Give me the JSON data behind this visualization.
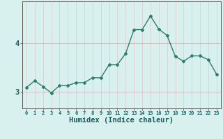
{
  "x": [
    0,
    1,
    2,
    3,
    4,
    5,
    6,
    7,
    8,
    9,
    10,
    11,
    12,
    13,
    14,
    15,
    16,
    17,
    18,
    19,
    20,
    21,
    22,
    23
  ],
  "y": [
    3.08,
    3.22,
    3.1,
    2.97,
    3.12,
    3.12,
    3.18,
    3.18,
    3.28,
    3.28,
    3.55,
    3.55,
    3.78,
    4.27,
    4.27,
    4.55,
    4.28,
    4.15,
    3.72,
    3.62,
    3.73,
    3.73,
    3.65,
    3.35
  ],
  "line_color": "#2e7d6e",
  "marker": "D",
  "marker_size": 2.0,
  "line_width": 1.0,
  "xlabel": "Humidex (Indice chaleur)",
  "xlabel_fontsize": 7.5,
  "yticks": [
    3,
    4
  ],
  "ylim": [
    2.65,
    4.85
  ],
  "xlim": [
    -0.5,
    23.5
  ],
  "xticks": [
    0,
    1,
    2,
    3,
    4,
    5,
    6,
    7,
    8,
    9,
    10,
    11,
    12,
    13,
    14,
    15,
    16,
    17,
    18,
    19,
    20,
    21,
    22,
    23
  ],
  "bg_color": "#d8f0ee",
  "grid_color_v": "#dcc8c8",
  "grid_color_h": "#c8b8b8"
}
